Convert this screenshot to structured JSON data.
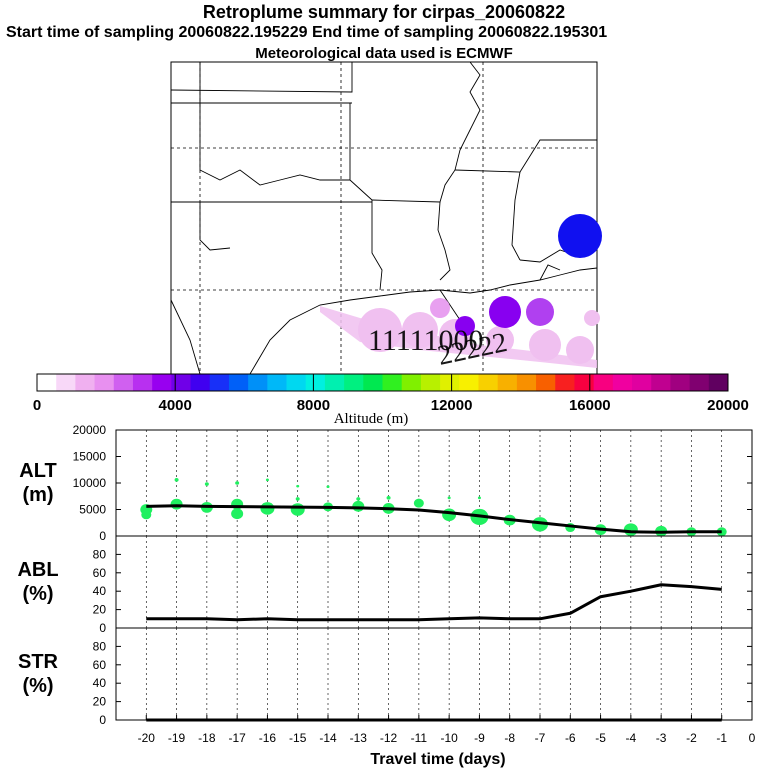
{
  "title": {
    "line1": "Retroplume summary for cirpas_20060822",
    "line2": "Start time of sampling 20060822.195229     End time of sampling 20060822.195301",
    "line3": "Meteorological data used is ECMWF"
  },
  "colorbar": {
    "ticks": [
      "0",
      "4000",
      "8000",
      "12000",
      "16000",
      "20000"
    ],
    "label": "Altitude (m)",
    "colors": [
      "#ffffff",
      "#f8d8f8",
      "#f0b0f0",
      "#e890f0",
      "#d060f0",
      "#b830f0",
      "#9800f0",
      "#7000e8",
      "#4000f0",
      "#1830f8",
      "#0060f8",
      "#0090f8",
      "#00b8f8",
      "#00d8f0",
      "#00f0e0",
      "#00f0b0",
      "#00f080",
      "#00e850",
      "#30f020",
      "#80f000",
      "#b8f000",
      "#e0f000",
      "#f8f000",
      "#f8d000",
      "#f8b000",
      "#f89000",
      "#f86000",
      "#f82020",
      "#f80040",
      "#f80080",
      "#f000a0",
      "#e000a0",
      "#c00090",
      "#a00080",
      "#800070",
      "#600060"
    ]
  },
  "chart_data": [
    {
      "type": "line",
      "panel": "ALT (m)",
      "ylabel": "ALT (m)",
      "ylim": [
        0,
        20000
      ],
      "yticks": [
        "20000",
        "15000",
        "10000",
        "5000",
        "0"
      ],
      "x": [
        -20,
        -19,
        -18,
        -17,
        -16,
        -15,
        -14,
        -13,
        -12,
        -11,
        -10,
        -9,
        -8,
        -7,
        -6,
        -5,
        -4,
        -3,
        -2,
        -1
      ],
      "values": [
        5600,
        5700,
        5600,
        5550,
        5500,
        5450,
        5400,
        5300,
        5150,
        4900,
        4400,
        3800,
        3100,
        2500,
        1900,
        1300,
        800,
        700,
        800,
        800
      ],
      "scatter": [
        {
          "x": -20,
          "y": 5000,
          "r": 6
        },
        {
          "x": -20,
          "y": 4000,
          "r": 5
        },
        {
          "x": -19,
          "y": 6000,
          "r": 6
        },
        {
          "x": -19,
          "y": 10600,
          "r": 2
        },
        {
          "x": -18,
          "y": 5400,
          "r": 6
        },
        {
          "x": -18,
          "y": 9800,
          "r": 2
        },
        {
          "x": -17,
          "y": 6000,
          "r": 6
        },
        {
          "x": -17,
          "y": 4200,
          "r": 6
        },
        {
          "x": -17,
          "y": 10000,
          "r": 2
        },
        {
          "x": -16,
          "y": 5200,
          "r": 7
        },
        {
          "x": -16,
          "y": 10600,
          "r": 1.5
        },
        {
          "x": -15,
          "y": 5000,
          "r": 7
        },
        {
          "x": -15,
          "y": 9400,
          "r": 1.5
        },
        {
          "x": -15,
          "y": 7000,
          "r": 2
        },
        {
          "x": -14,
          "y": 5500,
          "r": 5
        },
        {
          "x": -14,
          "y": 9300,
          "r": 1.5
        },
        {
          "x": -13,
          "y": 5600,
          "r": 6
        },
        {
          "x": -13,
          "y": 7000,
          "r": 2
        },
        {
          "x": -12,
          "y": 5200,
          "r": 6
        },
        {
          "x": -12,
          "y": 7200,
          "r": 2
        },
        {
          "x": -11,
          "y": 6200,
          "r": 5
        },
        {
          "x": -10,
          "y": 4000,
          "r": 7
        },
        {
          "x": -10,
          "y": 7200,
          "r": 1.5
        },
        {
          "x": -9,
          "y": 3600,
          "r": 9
        },
        {
          "x": -9,
          "y": 7200,
          "r": 1.5
        },
        {
          "x": -8,
          "y": 3000,
          "r": 6
        },
        {
          "x": -7,
          "y": 2200,
          "r": 8
        },
        {
          "x": -6,
          "y": 1600,
          "r": 5
        },
        {
          "x": -5,
          "y": 1200,
          "r": 6
        },
        {
          "x": -4,
          "y": 1200,
          "r": 7
        },
        {
          "x": -3,
          "y": 900,
          "r": 6
        },
        {
          "x": -2,
          "y": 800,
          "r": 5
        },
        {
          "x": -1,
          "y": 800,
          "r": 5
        }
      ]
    },
    {
      "type": "line",
      "panel": "ABL (%)",
      "ylabel": "ABL (%)",
      "ylim": [
        0,
        100
      ],
      "yticks": [
        "80",
        "60",
        "40",
        "20",
        "0"
      ],
      "x": [
        -20,
        -19,
        -18,
        -17,
        -16,
        -15,
        -14,
        -13,
        -12,
        -11,
        -10,
        -9,
        -8,
        -7,
        -6,
        -5,
        -4,
        -3,
        -2,
        -1
      ],
      "values": [
        10,
        10,
        10,
        9,
        10,
        9,
        9,
        9,
        9,
        9,
        10,
        11,
        10,
        10,
        16,
        34,
        40,
        47,
        45,
        42
      ]
    },
    {
      "type": "line",
      "panel": "STR (%)",
      "ylabel": "STR (%)",
      "ylim": [
        0,
        100
      ],
      "yticks": [
        "80",
        "60",
        "40",
        "20",
        "0"
      ],
      "x": [
        -20,
        -19,
        -18,
        -17,
        -16,
        -15,
        -14,
        -13,
        -12,
        -11,
        -10,
        -9,
        -8,
        -7,
        -6,
        -5,
        -4,
        -3,
        -2,
        -1
      ],
      "values": [
        0,
        0,
        0,
        0,
        0,
        0,
        0,
        0,
        0,
        0,
        0,
        0,
        0,
        0,
        0,
        0,
        0,
        0,
        0,
        0
      ]
    }
  ],
  "xaxis": {
    "ticks": [
      "-20",
      "-19",
      "-18",
      "-17",
      "-16",
      "-15",
      "-14",
      "-13",
      "-12",
      "-11",
      "-10",
      "-9",
      "-8",
      "-7",
      "-6",
      "-5",
      "-4",
      "-3",
      "-2",
      "-1",
      "0"
    ],
    "label": "Travel time (days)"
  },
  "panel_labels": [
    {
      "line1": "ALT",
      "line2": "(m)"
    },
    {
      "line1": "ABL",
      "line2": "(%)"
    },
    {
      "line1": "STR",
      "line2": "(%)"
    }
  ],
  "map": {
    "plume_labels": [
      "11111000",
      "22222"
    ]
  }
}
